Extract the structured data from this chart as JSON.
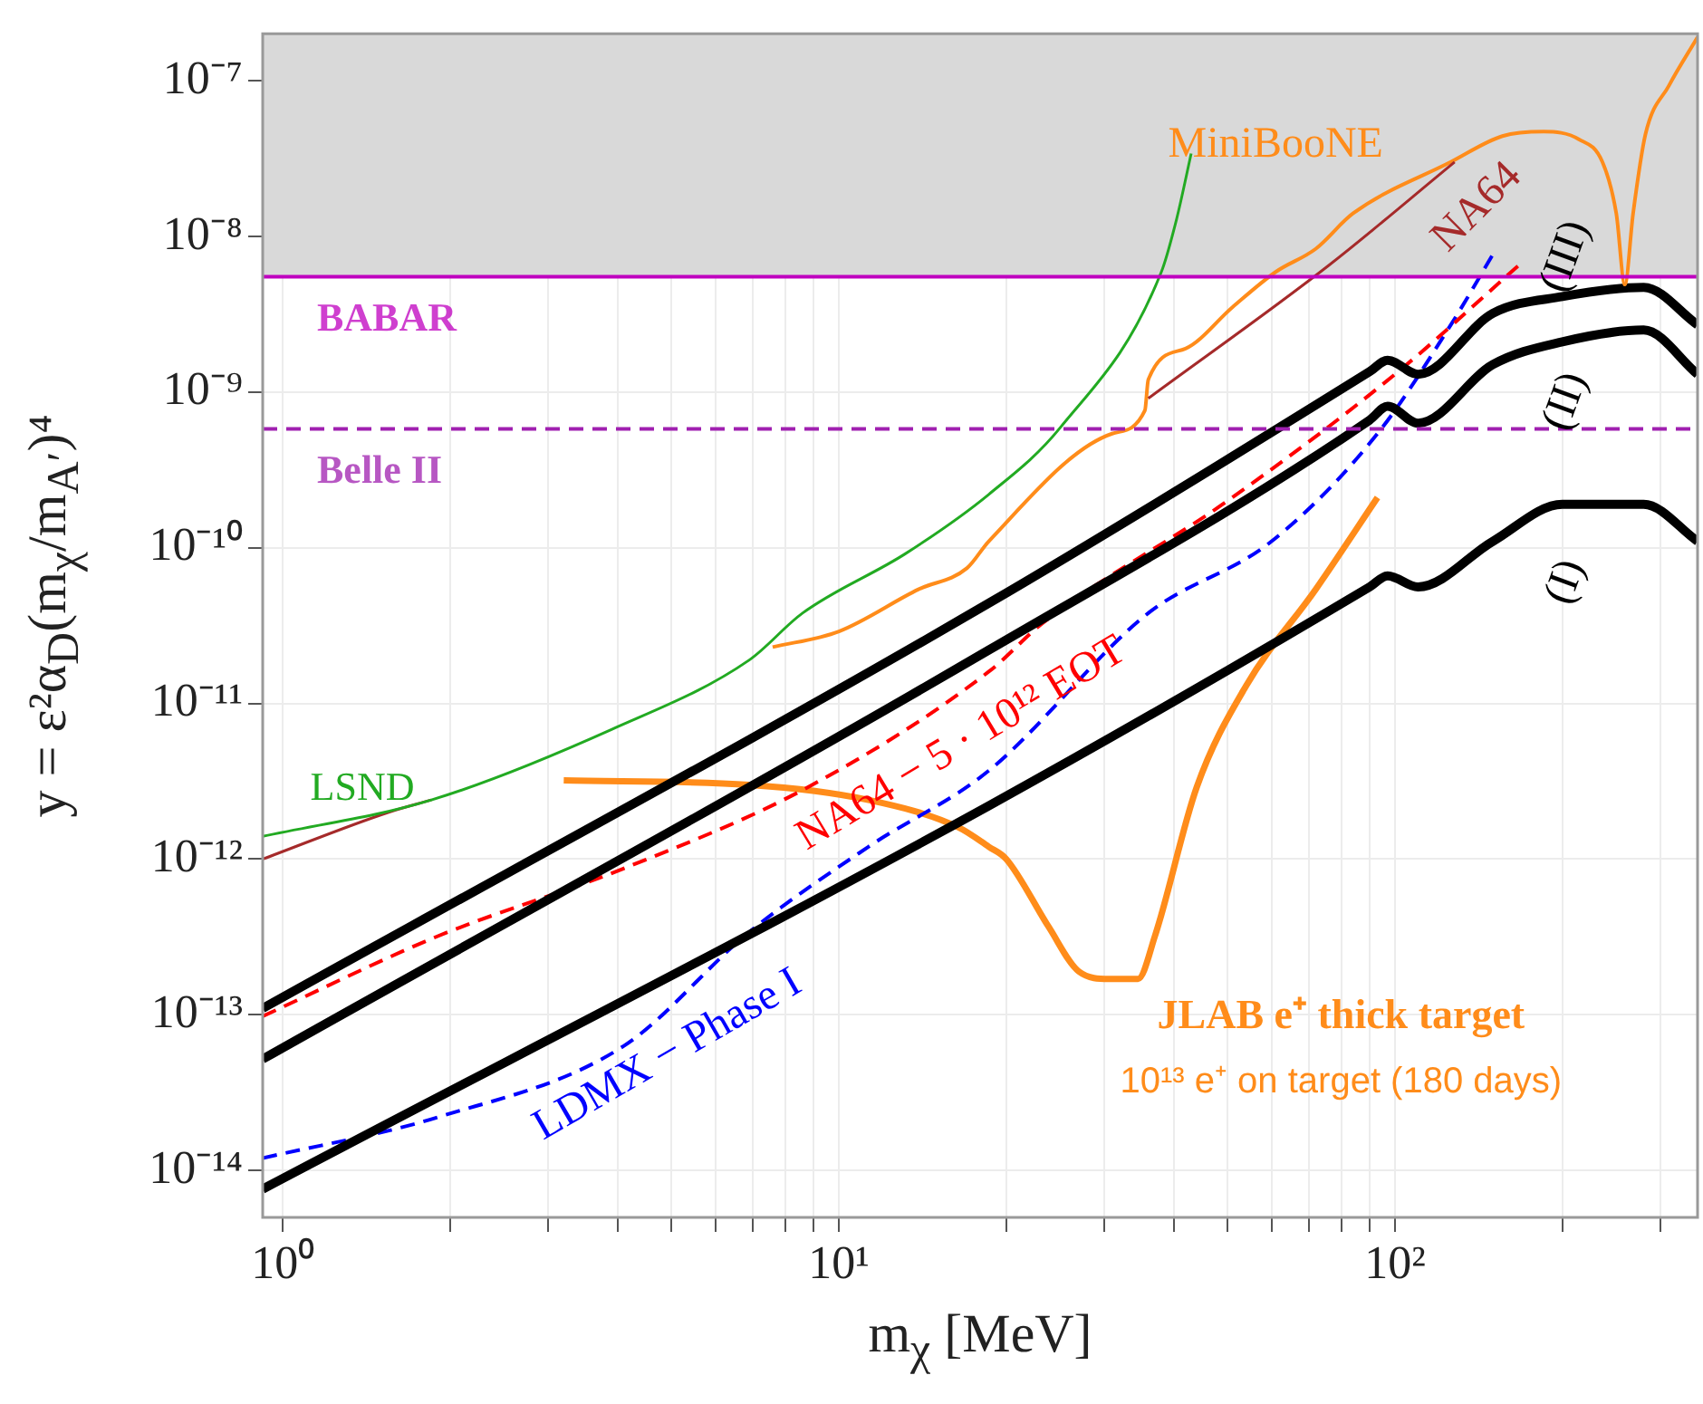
{
  "chart_data": {
    "type": "line",
    "xlabel": "m$_{χ}$ [MeV]",
    "ylabel": "y = ε²α$_{D}$(m$_{χ}$/m$_{A′}$)⁴",
    "log": "xy",
    "grid": true,
    "legend": false,
    "marker": "none",
    "xlim": [
      0.92,
      350
    ],
    "xticks": [
      {
        "value": 1,
        "label": "10⁰"
      },
      {
        "value": 2,
        "label": null
      },
      {
        "value": 3,
        "label": null
      },
      {
        "value": 4,
        "label": null
      },
      {
        "value": 5,
        "label": null
      },
      {
        "value": 6,
        "label": null
      },
      {
        "value": 7,
        "label": null
      },
      {
        "value": 8,
        "label": null
      },
      {
        "value": 9,
        "label": null
      },
      {
        "value": 10,
        "label": "10¹"
      },
      {
        "value": 20,
        "label": null
      },
      {
        "value": 30,
        "label": null
      },
      {
        "value": 40,
        "label": null
      },
      {
        "value": 50,
        "label": null
      },
      {
        "value": 60,
        "label": null
      },
      {
        "value": 70,
        "label": null
      },
      {
        "value": 80,
        "label": null
      },
      {
        "value": 90,
        "label": null
      },
      {
        "value": 100,
        "label": "10²"
      },
      {
        "value": 200,
        "label": null
      },
      {
        "value": 300,
        "label": null
      }
    ],
    "ylim": [
      5e-15,
      2e-07
    ],
    "yticks": [
      {
        "value": 1e-14,
        "label": "10⁻¹⁴"
      },
      {
        "value": 1e-13,
        "label": "10⁻¹³"
      },
      {
        "value": 1e-12,
        "label": "10⁻¹²"
      },
      {
        "value": 1e-11,
        "label": "10⁻¹¹"
      },
      {
        "value": 1e-10,
        "label": "10⁻¹⁰"
      },
      {
        "value": 1e-09,
        "label": "10⁻⁹"
      },
      {
        "value": 1e-08,
        "label": "10⁻⁸"
      },
      {
        "value": 1e-07,
        "label": "10⁻⁷"
      }
    ],
    "bands": [
      {
        "axis": "y",
        "from": 5.5e-09,
        "to": 2e-07,
        "color": "#d9d9d9"
      }
    ],
    "ref_lines": [
      {
        "axis": "y",
        "value": 5.5e-09,
        "label": "BABAR",
        "color": "#bf00bf",
        "line_style": "solid"
      },
      {
        "axis": "y",
        "value": 5.8e-10,
        "label": "Belle II",
        "color": "#a020b0",
        "line_style": "dashed"
      }
    ],
    "series": [
      {
        "name": "LSND",
        "type": "line",
        "color": "#22aa22",
        "line_style": "solid",
        "x": [
          0.92,
          1.85,
          3.9,
          6.9,
          8.6,
          13.2,
          18.6,
          25,
          38,
          40.5,
          43
        ],
        "values": [
          1.4e-12,
          2.4e-12,
          6.8e-12,
          1.9e-11,
          3.8e-11,
          9.2e-11,
          2.2e-10,
          5.9e-10,
          5.9e-09,
          1.3e-08,
          3.4e-08
        ]
      },
      {
        "name": "NA64",
        "type": "line",
        "color": "#a52a2a",
        "line_style": "solid",
        "x": [
          0.92,
          1.55,
          1.85,
          10,
          36,
          76,
          128
        ],
        "values": [
          1e-12,
          2e-12,
          2.4e-12,
          null,
          9.1e-10,
          6.5e-09,
          3e-08
        ]
      },
      {
        "name": "MiniBooNE",
        "type": "line",
        "color": "#ff8c1a",
        "line_style": "solid",
        "x": [
          7.6,
          10,
          13.9,
          17,
          18.6,
          31,
          35.5,
          36,
          42,
          51,
          61,
          72,
          84,
          126,
          156,
          185,
          214,
          236,
          250,
          259,
          268,
          282,
          311,
          350
        ],
        "values": [
          2.3e-11,
          2.9e-11,
          5.4e-11,
          7.4e-11,
          1.1e-10,
          5.4e-10,
          7.6e-10,
          1.2e-09,
          1.9e-09,
          3.5e-09,
          5.9e-09,
          8.3e-09,
          1.4e-08,
          3e-08,
          4.4e-08,
          4.7e-08,
          4.2e-08,
          3e-08,
          1.4e-08,
          4.9e-09,
          1.4e-08,
          4.5e-08,
          9.3e-08,
          1.9e-07
        ]
      },
      {
        "name": "(III)",
        "type": "line",
        "color": "#000000",
        "line_style": "solid",
        "x": [
          0.92,
          18.6,
          90,
          97,
          110,
          150,
          200,
          280,
          350
        ],
        "values": [
          1.1e-13,
          4.4e-11,
          1.35e-09,
          1.6e-09,
          1.3e-09,
          3.2e-09,
          4.1e-09,
          4.7e-09,
          2.7e-09
        ]
      },
      {
        "name": "(II)",
        "type": "line",
        "color": "#000000",
        "line_style": "solid",
        "x": [
          0.92,
          18.6,
          90,
          97,
          110,
          150,
          200,
          280,
          350
        ],
        "values": [
          5.2e-14,
          2.2e-11,
          6.6e-10,
          8.1e-10,
          6.3e-10,
          1.5e-09,
          2.1e-09,
          2.5e-09,
          1.3e-09
        ]
      },
      {
        "name": "(I)",
        "type": "line",
        "color": "#000000",
        "line_style": "solid",
        "x": [
          0.92,
          18.6,
          90,
          97,
          110,
          150,
          200,
          280,
          350
        ],
        "values": [
          7.6e-15,
          2.2e-12,
          5.6e-11,
          6.6e-11,
          5.6e-11,
          1.1e-10,
          1.9e-10,
          1.9e-10,
          1.1e-10
        ]
      },
      {
        "name": "NA64 − 5 · 10¹² EOT",
        "type": "line",
        "color": "#ff0000",
        "line_style": "dashed",
        "x": [
          0.92,
          1.9,
          4.1,
          8.8,
          18.6,
          23.3,
          50,
          100,
          170
        ],
        "values": [
          9.8e-14,
          3.2e-13,
          8.7e-13,
          2.9e-12,
          1.6e-11,
          3.3e-11,
          2e-10,
          1.3e-09,
          6.9e-09
        ]
      },
      {
        "name": "LDMX − Phase I",
        "type": "line",
        "color": "#0000ff",
        "line_style": "dashed",
        "x": [
          0.92,
          1.9,
          4.1,
          6.9,
          11.3,
          18.6,
          36,
          60,
          93,
          126,
          152
        ],
        "values": [
          1.2e-14,
          2.2e-14,
          6.3e-14,
          3.4e-13,
          1.2e-12,
          3.7e-12,
          3.8e-11,
          1.1e-10,
          5.4e-10,
          2.7e-09,
          8.3e-09
        ]
      },
      {
        "name": "JLAB e⁺ thick target",
        "type": "line",
        "color": "#ff8c1a",
        "line_style": "solid",
        "x": [
          3.2,
          6.9,
          11.3,
          16.4,
          18.6,
          20,
          23.8,
          27,
          30.6,
          34.5,
          37,
          44,
          54,
          72,
          93
        ],
        "values": [
          3.2e-12,
          3e-12,
          2.4e-12,
          1.6e-12,
          1.2e-12,
          1e-12,
          3.7e-13,
          1.9e-13,
          1.7e-13,
          1.7e-13,
          3.2e-13,
          2.9e-12,
          1.3e-11,
          5.4e-11,
          2.1e-10
        ]
      }
    ],
    "annotations": [
      "10¹³ e⁺ on target (180 days)"
    ]
  }
}
